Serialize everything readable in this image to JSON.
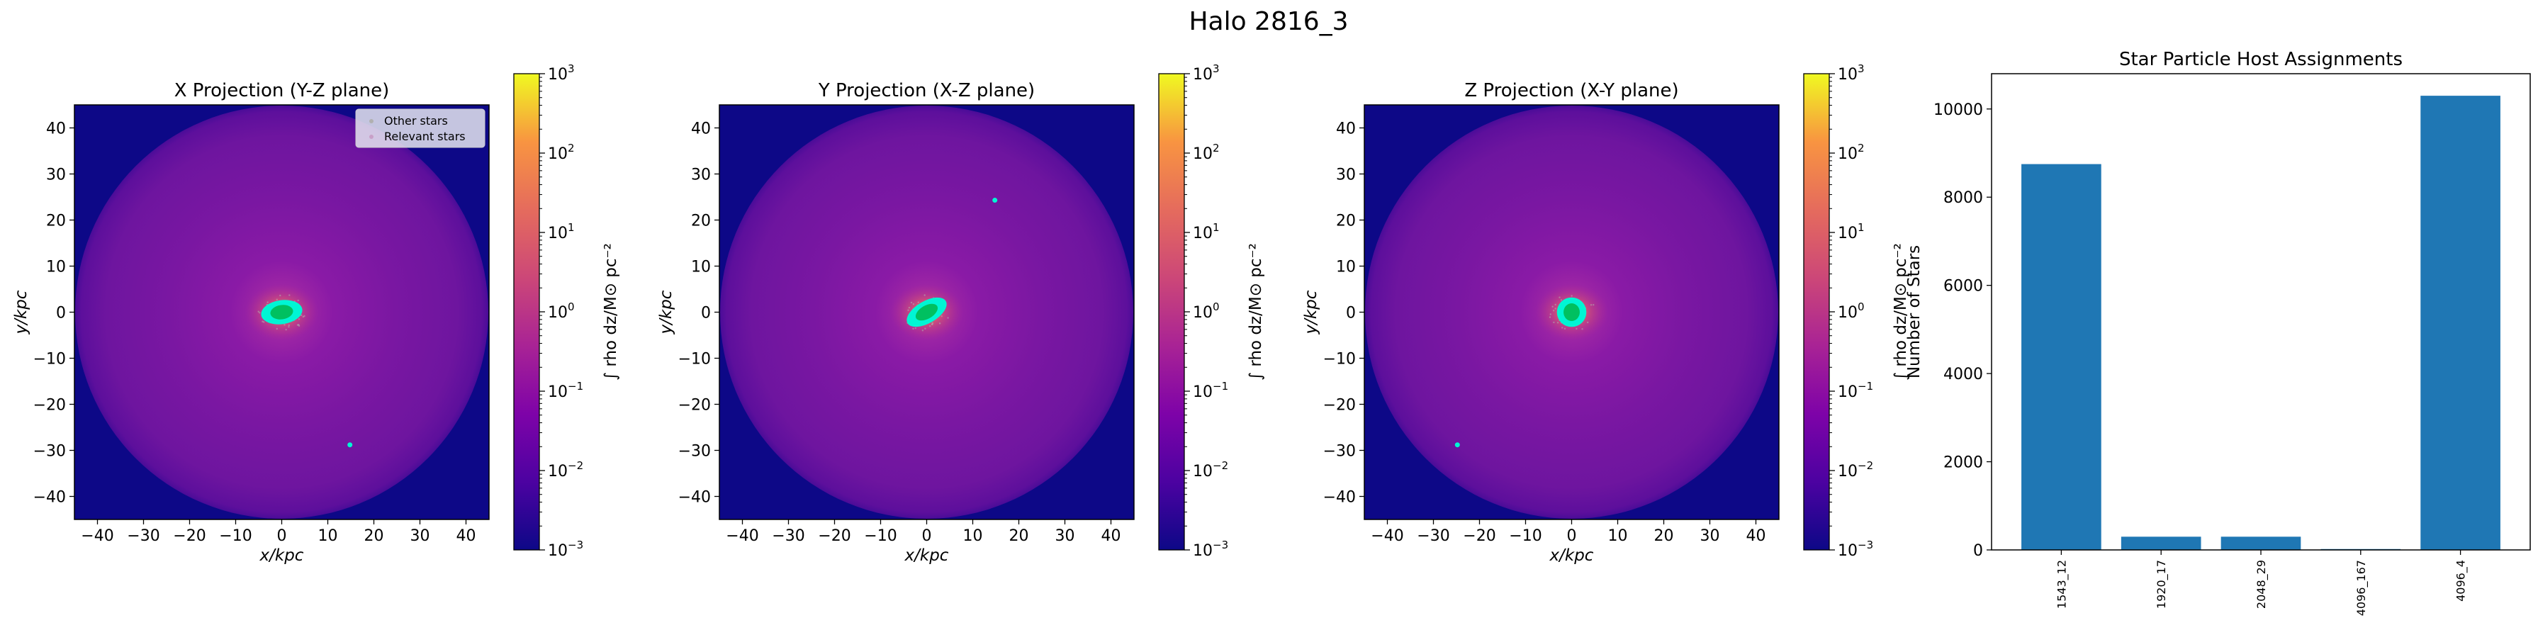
{
  "figure": {
    "title": "Halo 2816_3"
  },
  "projections": [
    {
      "title": "X Projection (Y-Z plane)",
      "xlabel": "x/kpc",
      "ylabel": "y/kpc",
      "ticks": [
        -40,
        -30,
        -20,
        -10,
        0,
        10,
        20,
        30,
        40
      ],
      "xlim": [
        -45,
        45
      ],
      "ylim": [
        -45,
        45
      ],
      "core": {
        "x": 0,
        "y": 0,
        "rx": 4.5,
        "ry": 2.6,
        "rot": -8
      },
      "outliers": [
        {
          "x": 14.8,
          "y": -28.8
        }
      ],
      "legend": {
        "items": [
          "Other stars",
          "Relevant stars"
        ],
        "placement": "upper right"
      }
    },
    {
      "title": "Y Projection (X-Z plane)",
      "xlabel": "x/kpc",
      "ylabel": "y/kpc",
      "ticks": [
        -40,
        -30,
        -20,
        -10,
        0,
        10,
        20,
        30,
        40
      ],
      "xlim": [
        -45,
        45
      ],
      "ylim": [
        -45,
        45
      ],
      "core": {
        "x": 0,
        "y": 0,
        "rx": 4.8,
        "ry": 2.4,
        "rot": -30
      },
      "outliers": [
        {
          "x": 14.8,
          "y": 24.3
        }
      ]
    },
    {
      "title": "Z Projection (X-Y plane)",
      "xlabel": "x/kpc",
      "ylabel": "y/kpc",
      "ticks": [
        -40,
        -30,
        -20,
        -10,
        0,
        10,
        20,
        30,
        40
      ],
      "xlim": [
        -45,
        45
      ],
      "ylim": [
        -45,
        45
      ],
      "core": {
        "x": 0,
        "y": 0,
        "rx": 3.2,
        "ry": 3.2,
        "rot": 0
      },
      "outliers": [
        {
          "x": -24.8,
          "y": -28.8
        }
      ]
    }
  ],
  "colorbar": {
    "label": "∫ rho dz/M⊙ pc⁻²",
    "scale": "log",
    "range": [
      0.001,
      1000
    ],
    "exponents": [
      "-3",
      "-2",
      "-1",
      "0",
      "1",
      "2",
      "3"
    ],
    "base": "10",
    "colormap": "plasma"
  },
  "colors": {
    "background_density": "#0d0887",
    "relevant_stars": "#00f5d4",
    "other_stars": "#b0b0b0",
    "core_center": "#00c060",
    "bar_color": "#1f77b4"
  },
  "chart_data": {
    "type": "bar",
    "title": "Star Particle Host Assignments",
    "xlabel": "",
    "ylabel": "Number of Stars",
    "categories": [
      "1543_12",
      "1920_17",
      "2048_29",
      "4096_167",
      "4096_4"
    ],
    "values": [
      8750,
      300,
      300,
      20,
      10300
    ],
    "ylim": [
      0,
      10800
    ],
    "yticks": [
      0,
      2000,
      4000,
      6000,
      8000,
      10000
    ],
    "grid": false
  }
}
